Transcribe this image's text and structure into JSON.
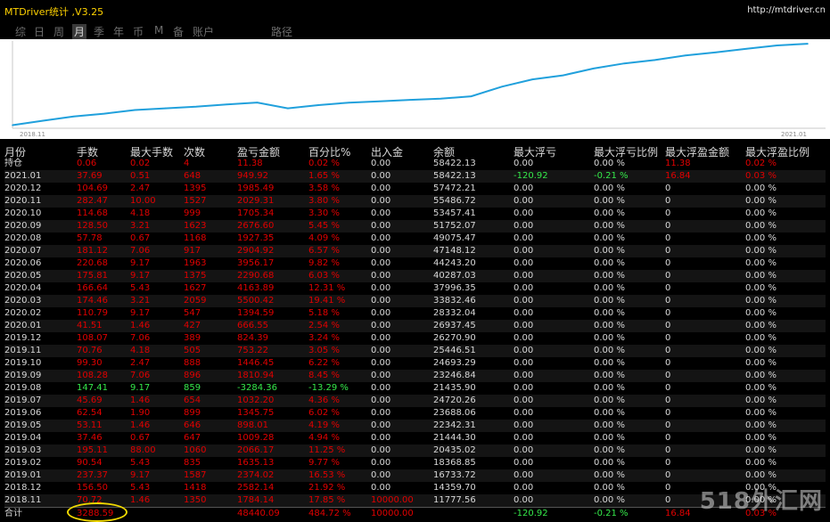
{
  "app": {
    "title": "MTDriver统计 ,V3.25",
    "url": "http://mtdriver.cn"
  },
  "tabs": [
    {
      "label": "综",
      "active": false
    },
    {
      "label": "日",
      "active": false
    },
    {
      "label": "周",
      "active": false
    },
    {
      "label": "月",
      "active": true
    },
    {
      "label": "季",
      "active": false
    },
    {
      "label": "年",
      "active": false
    },
    {
      "label": "币",
      "active": false
    },
    {
      "label": "M",
      "active": false
    },
    {
      "label": "备",
      "active": false
    },
    {
      "label": "账户",
      "active": false
    },
    {
      "label": "路径",
      "active": false
    }
  ],
  "colors": {
    "positive": "#e10000",
    "negative": "#35e84a",
    "neutral": "#d8d8d8",
    "line": "#20a0dc"
  },
  "chart_data": {
    "type": "line",
    "x_start_label": "2018.11",
    "x_end_label": "2021.01",
    "x": [
      "2018.11",
      "2018.12",
      "2019.01",
      "2019.02",
      "2019.03",
      "2019.04",
      "2019.05",
      "2019.06",
      "2019.07",
      "2019.08",
      "2019.09",
      "2019.10",
      "2019.11",
      "2019.12",
      "2020.01",
      "2020.02",
      "2020.03",
      "2020.04",
      "2020.05",
      "2020.06",
      "2020.07",
      "2020.08",
      "2020.09",
      "2020.10",
      "2020.11",
      "2020.12",
      "2021.01"
    ],
    "values": [
      11777.56,
      14359.7,
      16733.72,
      18368.85,
      20435.02,
      21444.3,
      22342.31,
      23688.06,
      24720.26,
      21435.9,
      23246.84,
      24693.29,
      25446.51,
      26270.9,
      26937.45,
      28332.04,
      33832.46,
      37996.35,
      40287.03,
      44243.2,
      47148.12,
      49075.47,
      51752.07,
      53457.41,
      55486.72,
      57472.21,
      58422.13
    ]
  },
  "table": {
    "headers": [
      "月份",
      "手数",
      "最大手数",
      "次数",
      "盈亏金额",
      "百分比%",
      "出入金",
      "余额",
      "最大浮亏",
      "最大浮亏比例",
      "最大浮盈金额",
      "最大浮盈比例"
    ],
    "rows": [
      {
        "c": [
          "持仓",
          "0.06",
          "0.02",
          "4",
          "11.38",
          "0.02 %",
          "0.00",
          "58422.13",
          "0.00",
          "0.00 %",
          "11.38",
          "0.02 %"
        ],
        "s": "p",
        "mloss": "n",
        "mgain": "p"
      },
      {
        "c": [
          "2021.01",
          "37.69",
          "0.51",
          "648",
          "949.92",
          "1.65 %",
          "0.00",
          "58422.13",
          "-120.92",
          "-0.21 %",
          "16.84",
          "0.03 %"
        ],
        "s": "p",
        "mloss": "g",
        "mgain": "p"
      },
      {
        "c": [
          "2020.12",
          "104.69",
          "2.47",
          "1395",
          "1985.49",
          "3.58 %",
          "0.00",
          "57472.21",
          "0.00",
          "0.00 %",
          "0",
          "0.00 %"
        ],
        "s": "p",
        "mloss": "n",
        "mgain": "n"
      },
      {
        "c": [
          "2020.11",
          "282.47",
          "10.00",
          "1527",
          "2029.31",
          "3.80 %",
          "0.00",
          "55486.72",
          "0.00",
          "0.00 %",
          "0",
          "0.00 %"
        ],
        "s": "p",
        "mloss": "n",
        "mgain": "n"
      },
      {
        "c": [
          "2020.10",
          "114.68",
          "4.18",
          "999",
          "1705.34",
          "3.30 %",
          "0.00",
          "53457.41",
          "0.00",
          "0.00 %",
          "0",
          "0.00 %"
        ],
        "s": "p",
        "mloss": "n",
        "mgain": "n"
      },
      {
        "c": [
          "2020.09",
          "128.50",
          "3.21",
          "1623",
          "2676.60",
          "5.45 %",
          "0.00",
          "51752.07",
          "0.00",
          "0.00 %",
          "0",
          "0.00 %"
        ],
        "s": "p",
        "mloss": "n",
        "mgain": "n"
      },
      {
        "c": [
          "2020.08",
          "57.78",
          "0.67",
          "1168",
          "1927.35",
          "4.09 %",
          "0.00",
          "49075.47",
          "0.00",
          "0.00 %",
          "0",
          "0.00 %"
        ],
        "s": "p",
        "mloss": "n",
        "mgain": "n"
      },
      {
        "c": [
          "2020.07",
          "181.12",
          "7.06",
          "917",
          "2904.92",
          "6.57 %",
          "0.00",
          "47148.12",
          "0.00",
          "0.00 %",
          "0",
          "0.00 %"
        ],
        "s": "p",
        "mloss": "n",
        "mgain": "n"
      },
      {
        "c": [
          "2020.06",
          "220.68",
          "9.17",
          "1963",
          "3956.17",
          "9.82 %",
          "0.00",
          "44243.20",
          "0.00",
          "0.00 %",
          "0",
          "0.00 %"
        ],
        "s": "p",
        "mloss": "n",
        "mgain": "n"
      },
      {
        "c": [
          "2020.05",
          "175.81",
          "9.17",
          "1375",
          "2290.68",
          "6.03 %",
          "0.00",
          "40287.03",
          "0.00",
          "0.00 %",
          "0",
          "0.00 %"
        ],
        "s": "p",
        "mloss": "n",
        "mgain": "n"
      },
      {
        "c": [
          "2020.04",
          "166.64",
          "5.43",
          "1627",
          "4163.89",
          "12.31 %",
          "0.00",
          "37996.35",
          "0.00",
          "0.00 %",
          "0",
          "0.00 %"
        ],
        "s": "p",
        "mloss": "n",
        "mgain": "n"
      },
      {
        "c": [
          "2020.03",
          "174.46",
          "3.21",
          "2059",
          "5500.42",
          "19.41 %",
          "0.00",
          "33832.46",
          "0.00",
          "0.00 %",
          "0",
          "0.00 %"
        ],
        "s": "p",
        "mloss": "n",
        "mgain": "n"
      },
      {
        "c": [
          "2020.02",
          "110.79",
          "9.17",
          "547",
          "1394.59",
          "5.18 %",
          "0.00",
          "28332.04",
          "0.00",
          "0.00 %",
          "0",
          "0.00 %"
        ],
        "s": "p",
        "mloss": "n",
        "mgain": "n"
      },
      {
        "c": [
          "2020.01",
          "41.51",
          "1.46",
          "427",
          "666.55",
          "2.54 %",
          "0.00",
          "26937.45",
          "0.00",
          "0.00 %",
          "0",
          "0.00 %"
        ],
        "s": "p",
        "mloss": "n",
        "mgain": "n"
      },
      {
        "c": [
          "2019.12",
          "108.07",
          "7.06",
          "389",
          "824.39",
          "3.24 %",
          "0.00",
          "26270.90",
          "0.00",
          "0.00 %",
          "0",
          "0.00 %"
        ],
        "s": "p",
        "mloss": "n",
        "mgain": "n"
      },
      {
        "c": [
          "2019.11",
          "70.76",
          "4.18",
          "505",
          "753.22",
          "3.05 %",
          "0.00",
          "25446.51",
          "0.00",
          "0.00 %",
          "0",
          "0.00 %"
        ],
        "s": "p",
        "mloss": "n",
        "mgain": "n"
      },
      {
        "c": [
          "2019.10",
          "99.30",
          "2.47",
          "888",
          "1446.45",
          "6.22 %",
          "0.00",
          "24693.29",
          "0.00",
          "0.00 %",
          "0",
          "0.00 %"
        ],
        "s": "p",
        "mloss": "n",
        "mgain": "n"
      },
      {
        "c": [
          "2019.09",
          "108.28",
          "7.06",
          "896",
          "1810.94",
          "8.45 %",
          "0.00",
          "23246.84",
          "0.00",
          "0.00 %",
          "0",
          "0.00 %"
        ],
        "s": "p",
        "mloss": "n",
        "mgain": "n"
      },
      {
        "c": [
          "2019.08",
          "147.41",
          "9.17",
          "859",
          "-3284.36",
          "-13.29 %",
          "0.00",
          "21435.90",
          "0.00",
          "0.00 %",
          "0",
          "0.00 %"
        ],
        "s": "g",
        "mloss": "n",
        "mgain": "n"
      },
      {
        "c": [
          "2019.07",
          "45.69",
          "1.46",
          "654",
          "1032.20",
          "4.36 %",
          "0.00",
          "24720.26",
          "0.00",
          "0.00 %",
          "0",
          "0.00 %"
        ],
        "s": "p",
        "mloss": "n",
        "mgain": "n"
      },
      {
        "c": [
          "2019.06",
          "62.54",
          "1.90",
          "899",
          "1345.75",
          "6.02 %",
          "0.00",
          "23688.06",
          "0.00",
          "0.00 %",
          "0",
          "0.00 %"
        ],
        "s": "p",
        "mloss": "n",
        "mgain": "n"
      },
      {
        "c": [
          "2019.05",
          "53.11",
          "1.46",
          "646",
          "898.01",
          "4.19 %",
          "0.00",
          "22342.31",
          "0.00",
          "0.00 %",
          "0",
          "0.00 %"
        ],
        "s": "p",
        "mloss": "n",
        "mgain": "n"
      },
      {
        "c": [
          "2019.04",
          "37.46",
          "0.67",
          "647",
          "1009.28",
          "4.94 %",
          "0.00",
          "21444.30",
          "0.00",
          "0.00 %",
          "0",
          "0.00 %"
        ],
        "s": "p",
        "mloss": "n",
        "mgain": "n"
      },
      {
        "c": [
          "2019.03",
          "195.11",
          "88.00",
          "1060",
          "2066.17",
          "11.25 %",
          "0.00",
          "20435.02",
          "0.00",
          "0.00 %",
          "0",
          "0.00 %"
        ],
        "s": "p",
        "mloss": "n",
        "mgain": "n"
      },
      {
        "c": [
          "2019.02",
          "90.54",
          "5.43",
          "835",
          "1635.13",
          "9.77 %",
          "0.00",
          "18368.85",
          "0.00",
          "0.00 %",
          "0",
          "0.00 %"
        ],
        "s": "p",
        "mloss": "n",
        "mgain": "n"
      },
      {
        "c": [
          "2019.01",
          "237.37",
          "9.17",
          "1587",
          "2374.02",
          "16.53 %",
          "0.00",
          "16733.72",
          "0.00",
          "0.00 %",
          "0",
          "0.00 %"
        ],
        "s": "p",
        "mloss": "n",
        "mgain": "n"
      },
      {
        "c": [
          "2018.12",
          "156.50",
          "5.43",
          "1418",
          "2582.14",
          "21.92 %",
          "0.00",
          "14359.70",
          "0.00",
          "0.00 %",
          "0",
          "0.00 %"
        ],
        "s": "p",
        "mloss": "n",
        "mgain": "n"
      },
      {
        "c": [
          "2018.11",
          "70.72",
          "1.46",
          "1350",
          "1784.14",
          "17.85 %",
          "10000.00",
          "11777.56",
          "0.00",
          "0.00 %",
          "0",
          "0.00 %"
        ],
        "s": "p",
        "mloss": "n",
        "mgain": "n",
        "depo": "p"
      }
    ],
    "total": {
      "c": [
        "合计",
        "3288.59",
        "",
        "",
        "48440.09",
        "484.72 %",
        "10000.00",
        "",
        "-120.92",
        "-0.21 %",
        "16.84",
        "0.03 %"
      ]
    }
  },
  "watermark": "518外汇网"
}
